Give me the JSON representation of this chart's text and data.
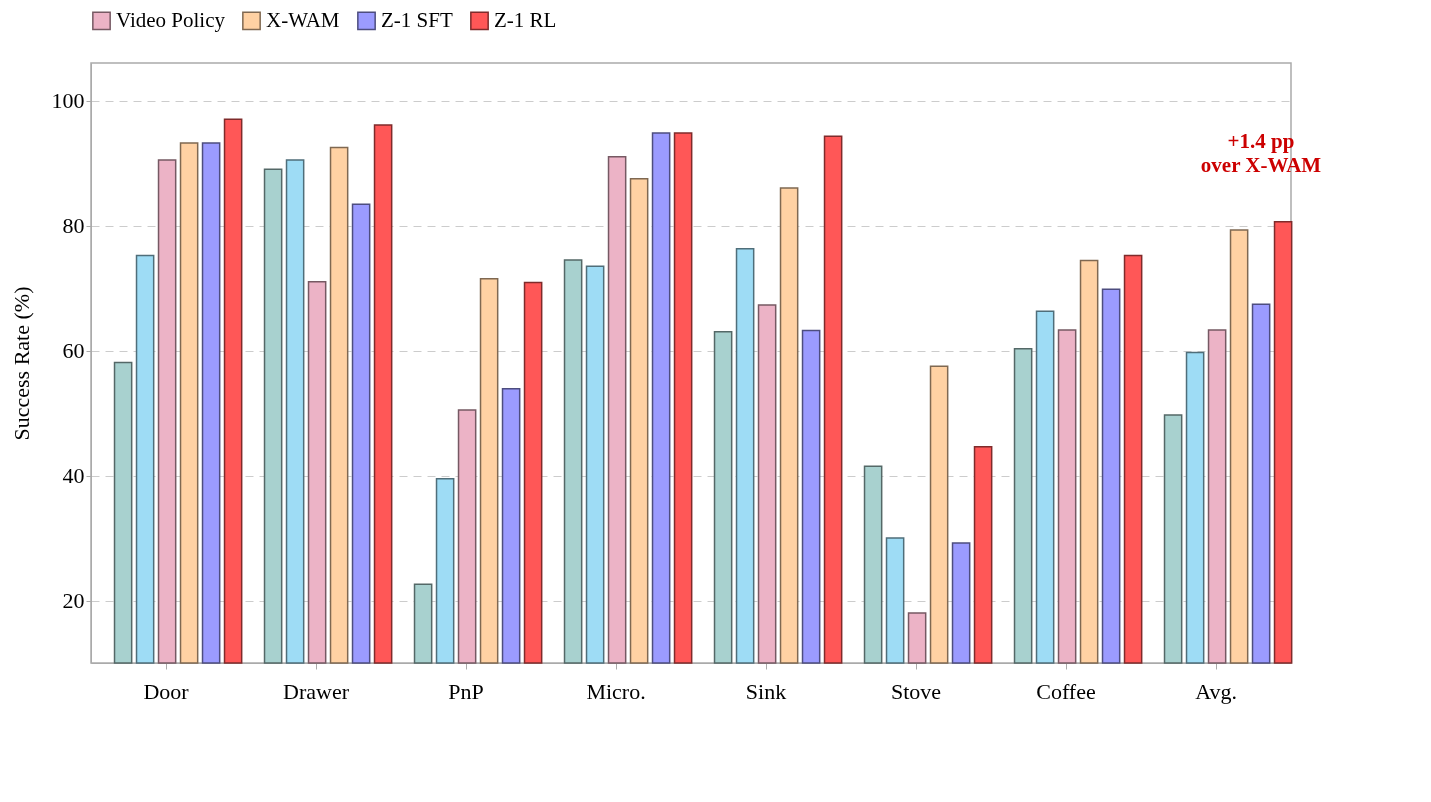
{
  "chart_data": {
    "type": "bar",
    "ylabel": "Success Rate (%)",
    "categories": [
      "Door",
      "Drawer",
      "PnP",
      "Micro.",
      "Sink",
      "Stove",
      "Coffee",
      "Avg."
    ],
    "series": [
      {
        "color": "#a8d1cf",
        "values": [
          58.1,
          89.0,
          22.6,
          74.5,
          63.0,
          41.5,
          60.3,
          49.7
        ]
      },
      {
        "color": "#9edcf5",
        "values": [
          75.2,
          90.5,
          39.5,
          73.5,
          76.3,
          30.0,
          66.3,
          59.7
        ]
      },
      {
        "name": "Video Policy",
        "color": "#ecb3c6",
        "values": [
          90.5,
          71.0,
          50.5,
          91.0,
          67.3,
          18.0,
          63.3,
          63.3
        ]
      },
      {
        "name": "X-WAM",
        "color": "#ffd1a3",
        "values": [
          93.2,
          92.5,
          71.5,
          87.5,
          86.0,
          57.5,
          74.4,
          79.3
        ]
      },
      {
        "name": "Z-1 SFT",
        "color": "#9b9bff",
        "values": [
          93.2,
          83.4,
          53.9,
          94.8,
          63.2,
          29.2,
          69.8,
          67.4
        ]
      },
      {
        "name": "Z-1 RL",
        "color": "#ff5757",
        "values": [
          97.0,
          96.1,
          70.9,
          94.8,
          94.3,
          44.6,
          75.2,
          80.6
        ]
      }
    ],
    "ylim": [
      10,
      106
    ],
    "yticks": [
      20,
      40,
      60,
      80,
      100
    ],
    "grid": "y",
    "legend": "top",
    "annotations": [
      "+1.4 pp over X-WAM"
    ]
  }
}
